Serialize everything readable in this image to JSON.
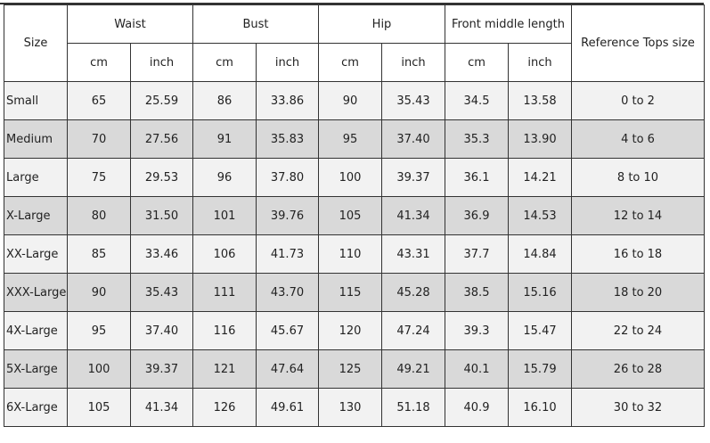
{
  "header": {
    "size": "Size",
    "groups": [
      "Waist",
      "Bust",
      "Hip",
      "Front middle length"
    ],
    "reference": "Reference Tops size",
    "units": [
      "cm",
      "inch"
    ]
  },
  "rows": [
    [
      "Small",
      "65",
      "25.59",
      "86",
      "33.86",
      "90",
      "35.43",
      "34.5",
      "13.58",
      "0 to 2"
    ],
    [
      "Medium",
      "70",
      "27.56",
      "91",
      "35.83",
      "95",
      "37.40",
      "35.3",
      "13.90",
      "4 to 6"
    ],
    [
      "Large",
      "75",
      "29.53",
      "96",
      "37.80",
      "100",
      "39.37",
      "36.1",
      "14.21",
      "8 to 10"
    ],
    [
      "X-Large",
      "80",
      "31.50",
      "101",
      "39.76",
      "105",
      "41.34",
      "36.9",
      "14.53",
      "12 to 14"
    ],
    [
      "XX-Large",
      "85",
      "33.46",
      "106",
      "41.73",
      "110",
      "43.31",
      "37.7",
      "14.84",
      "16 to 18"
    ],
    [
      "XXX-Large",
      "90",
      "35.43",
      "111",
      "43.70",
      "115",
      "45.28",
      "38.5",
      "15.16",
      "18 to 20"
    ],
    [
      "4X-Large",
      "95",
      "37.40",
      "116",
      "45.67",
      "120",
      "47.24",
      "39.3",
      "15.47",
      "22 to 24"
    ],
    [
      "5X-Large",
      "100",
      "39.37",
      "121",
      "47.64",
      "125",
      "49.21",
      "40.1",
      "15.79",
      "26 to 28"
    ],
    [
      "6X-Large",
      "105",
      "41.34",
      "126",
      "49.61",
      "130",
      "51.18",
      "40.9",
      "16.10",
      "30 to 32"
    ]
  ],
  "colors": {
    "row_light": "#f2f2f2",
    "row_dark": "#d9d9d9",
    "border": "#333333"
  }
}
